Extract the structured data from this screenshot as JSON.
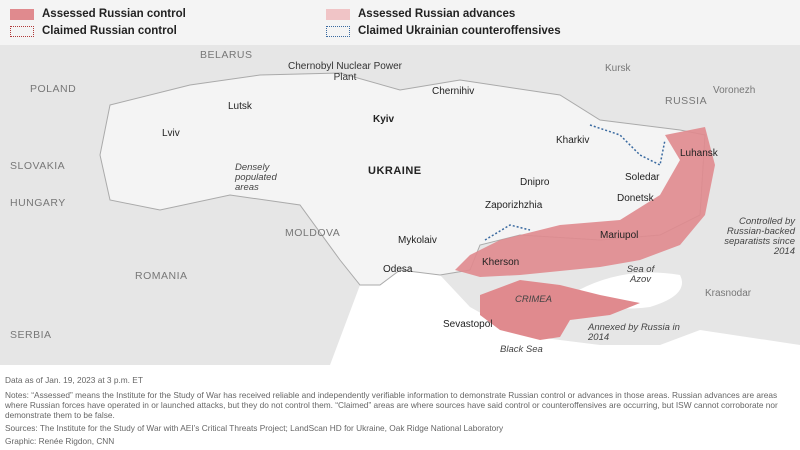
{
  "legend": {
    "items": [
      {
        "label": "Assessed Russian control",
        "color": "#e08a8e",
        "style": "fill"
      },
      {
        "label": "Assessed Russian advances",
        "color": "#f0c4c6",
        "style": "fill"
      },
      {
        "label": "Claimed Russian control",
        "color": "#b03a3a",
        "style": "dotted"
      },
      {
        "label": "Claimed Ukrainian counteroffensives",
        "color": "#3a6aa0",
        "style": "dotted"
      }
    ]
  },
  "map": {
    "countries": [
      "BELARUS",
      "POLAND",
      "SLOVAKIA",
      "HUNGARY",
      "MOLDOVA",
      "ROMANIA",
      "SERBIA",
      "RUSSIA",
      "UKRAINE",
      "CRIMEA"
    ],
    "cities": [
      "Lutsk",
      "Lviv",
      "Kyiv",
      "Chernihiv",
      "Kharkiv",
      "Dnipro",
      "Zaporizhzhia",
      "Mykolaiv",
      "Odesa",
      "Kherson",
      "Mariupol",
      "Donetsk",
      "Soledar",
      "Luhansk",
      "Sevastopol",
      "Kursk",
      "Voronezh",
      "Krasnodar"
    ],
    "annotations": {
      "chernobyl": "Chernobyl Nuclear Power Plant",
      "populated": "Densely populated areas",
      "separatists": "Controlled by Russian-backed separatists since 2014",
      "annexed": "Annexed by Russia in 2014"
    },
    "water": [
      "Sea of Azov",
      "Black Sea"
    ]
  },
  "footer": {
    "date": "Data as of Jan. 19, 2023 at 3 p.m. ET",
    "notes": "Notes: “Assessed” means the Institute for the Study of War has received reliable and independently verifiable information to demonstrate Russian control or advances in those areas. Russian advances are areas where Russian forces have operated in or launched attacks, but they do not control them. “Claimed” areas are where sources have said control or counteroffensives are occurring, but ISW cannot corroborate nor demonstrate them to be false.",
    "sources": "Sources: The Institute for the Study of War with AEI’s Critical Threats Project; LandScan HD for Ukraine, Oak Ridge National Laboratory",
    "graphic": "Graphic: Renée Rigdon, CNN"
  }
}
